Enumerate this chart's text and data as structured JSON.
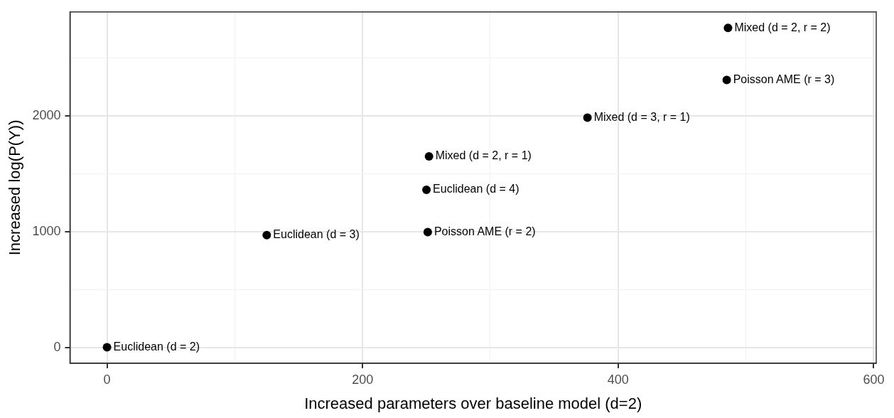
{
  "chart_data": {
    "type": "scatter",
    "xlabel": "Increased parameters over baseline model (d=2)",
    "ylabel": "Increased log(P(Y))",
    "x": [
      0,
      125,
      250,
      251,
      252,
      376,
      485,
      486
    ],
    "values": [
      0,
      969,
      1361,
      996,
      1650,
      1985,
      2310,
      2760
    ],
    "color": "#000000",
    "marker": "circle",
    "grid": true,
    "xlim": [
      -29,
      602
    ],
    "ylim": [
      -138,
      2898
    ],
    "xticks": [
      0,
      {
        "value": 100,
        "label": null
      },
      200,
      {
        "value": 300,
        "label": null
      },
      400,
      {
        "value": 500,
        "label": null
      },
      600
    ],
    "yticks": [
      0,
      {
        "value": 500,
        "label": null
      },
      1000,
      {
        "value": 1500,
        "label": null
      },
      2000,
      {
        "value": 2500,
        "label": null
      }
    ],
    "annotations": [
      {
        "text": "Euclidean (d = 2)",
        "x": 0,
        "y": 0
      },
      {
        "text": "Euclidean (d = 3)",
        "x": 125,
        "y": 969
      },
      {
        "text": "Euclidean (d = 4)",
        "x": 250,
        "y": 1361
      },
      {
        "text": "Poisson AME (r = 2)",
        "x": 251,
        "y": 996
      },
      {
        "text": "Mixed (d = 2, r = 1)",
        "x": 252,
        "y": 1650
      },
      {
        "text": "Mixed (d = 3, r = 1)",
        "x": 376,
        "y": 1985
      },
      {
        "text": "Poisson AME (r = 3)",
        "x": 485,
        "y": 2310
      },
      {
        "text": "Mixed (d = 2, r = 2)",
        "x": 486,
        "y": 2760
      }
    ]
  }
}
